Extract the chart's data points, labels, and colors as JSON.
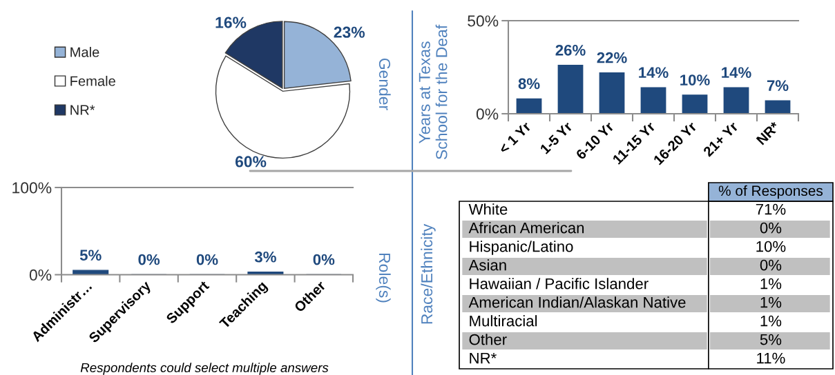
{
  "chart_data": [
    {
      "type": "pie",
      "title": "Gender",
      "categories": [
        "Male",
        "Female",
        "NR*"
      ],
      "values": [
        23,
        60,
        16
      ],
      "colors": [
        "#95b3d7",
        "#ffffff",
        "#1f3864"
      ],
      "value_labels": [
        "23%",
        "60%",
        "16%"
      ],
      "legend": "left"
    },
    {
      "type": "bar",
      "ylabel": "Years at Texas\nSchool for the Deaf",
      "categories": [
        "< 1 Yr",
        "1-5 Yr",
        "6-10 Yr",
        "11-15 Yr",
        "16-20 Yr",
        "21+ Yr",
        "NR*"
      ],
      "values": [
        8,
        26,
        22,
        14,
        10,
        14,
        7
      ],
      "value_labels": [
        "8%",
        "26%",
        "22%",
        "14%",
        "10%",
        "14%",
        "7%"
      ],
      "color": "#1f497d",
      "ylim": [
        0,
        50
      ],
      "yticks": [
        {
          "value": 0,
          "label": "0%"
        },
        {
          "value": 50,
          "label": "50%"
        }
      ]
    },
    {
      "type": "bar",
      "ylabel": "Role(s)",
      "categories": [
        "Administr…",
        "Supervisory",
        "Support",
        "Teaching",
        "Other"
      ],
      "values": [
        5,
        0,
        0,
        3,
        0
      ],
      "value_labels": [
        "5%",
        "0%",
        "0%",
        "3%",
        "0%"
      ],
      "color": "#1f497d",
      "ylim": [
        0,
        100
      ],
      "yticks": [
        {
          "value": 0,
          "label": "0%"
        },
        {
          "value": 100,
          "label": "100%"
        }
      ],
      "annotations": [
        "Respondents could select multiple answers"
      ]
    },
    {
      "type": "other",
      "title": "Race/Ethnicity",
      "xlabel": "% of Responses",
      "categories": [
        "White",
        "African American",
        "Hispanic/Latino",
        "Asian",
        "Hawaiian / Pacific Islander",
        "American Indian/Alaskan Native",
        "Multiracial",
        "Other",
        "NR*"
      ],
      "values": [
        71,
        0,
        10,
        0,
        1,
        1,
        1,
        5,
        11
      ],
      "value_labels": [
        "71%",
        "0%",
        "10%",
        "0%",
        "1%",
        "1%",
        "1%",
        "5%",
        "11%"
      ]
    }
  ]
}
